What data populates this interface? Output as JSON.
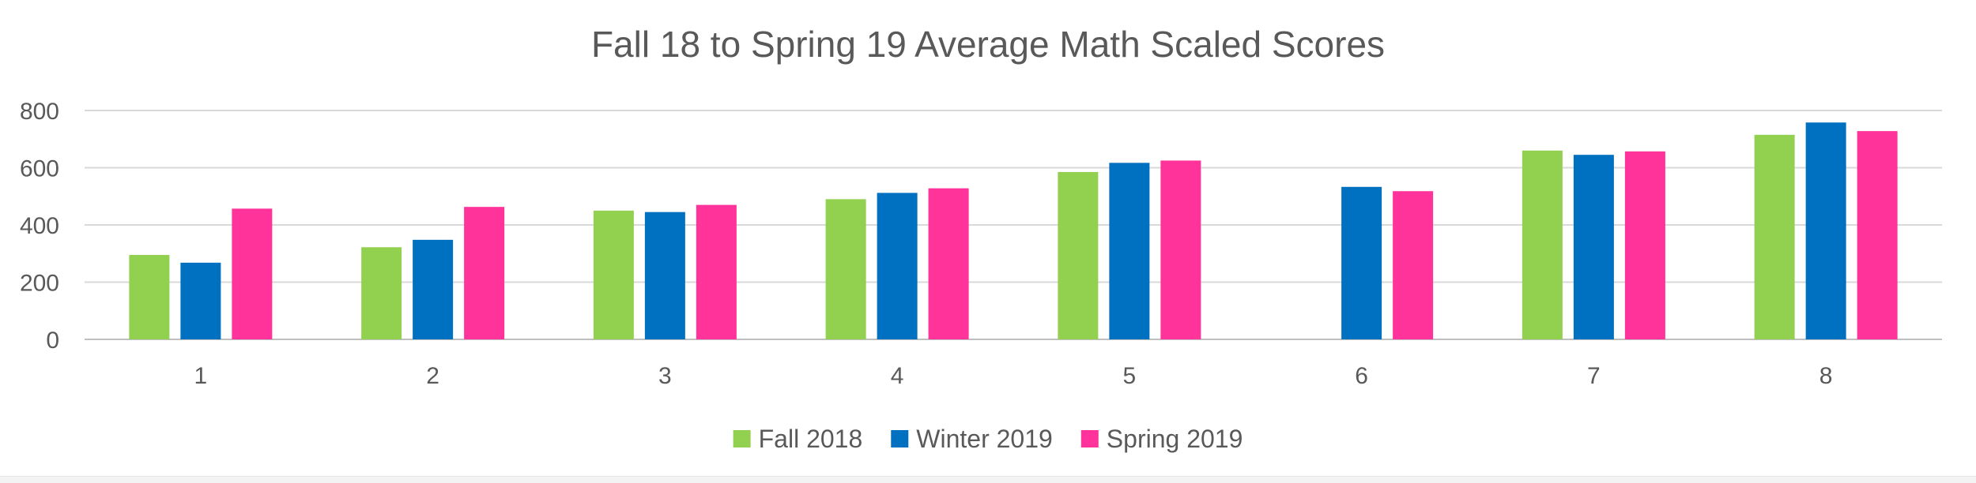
{
  "chart_data": {
    "type": "bar",
    "title": "Fall 18 to Spring 19 Average Math Scaled Scores",
    "xlabel": "",
    "ylabel": "",
    "ylim": [
      0,
      800
    ],
    "yticks": [
      0,
      200,
      400,
      600,
      800
    ],
    "grid": true,
    "legend_position": "bottom",
    "categories": [
      "1",
      "2",
      "3",
      "4",
      "5",
      "6",
      "7",
      "8"
    ],
    "series": [
      {
        "name": "Fall 2018",
        "color": "#92d050",
        "values": [
          295,
          322,
          450,
          490,
          585,
          null,
          660,
          715
        ]
      },
      {
        "name": "Winter 2019",
        "color": "#0070c0",
        "values": [
          268,
          348,
          445,
          512,
          617,
          533,
          645,
          758
        ]
      },
      {
        "name": "Spring 2019",
        "color": "#ff3399",
        "values": [
          457,
          463,
          470,
          528,
          625,
          518,
          657,
          728
        ]
      }
    ]
  }
}
